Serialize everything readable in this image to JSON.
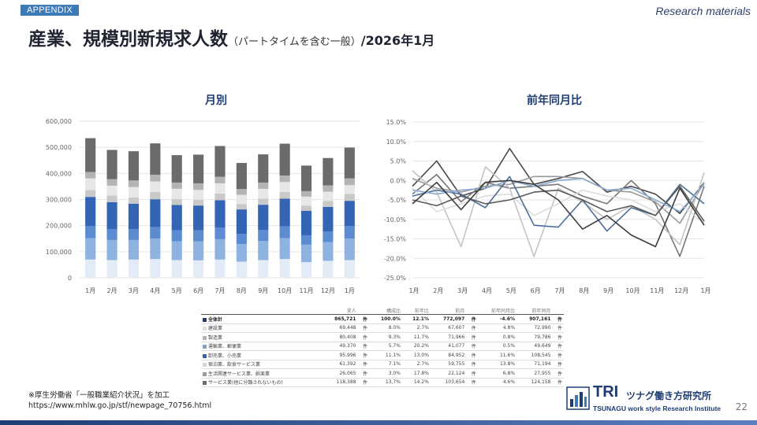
{
  "header": {
    "tag": "APPENDIX",
    "tagline": "Research materials",
    "title_main": "産業、規模別新規求人数",
    "title_sub": "（パートタイムを含む一般）",
    "title_tail": "/2026年1月"
  },
  "charts_head": {
    "left": "月別",
    "right": "前年同月比"
  },
  "chart_data": [
    {
      "type": "bar",
      "stacked": true,
      "title": "月別",
      "categories": [
        "1月",
        "2月",
        "3月",
        "4月",
        "5月",
        "6月",
        "7月",
        "8月",
        "9月",
        "10月",
        "11月",
        "12月",
        "1月"
      ],
      "ylim": [
        0,
        600000
      ],
      "yticks": [
        0,
        100000,
        200000,
        300000,
        400000,
        500000,
        600000
      ],
      "ytick_labels": [
        "0",
        "100,000",
        "200,000",
        "300,000",
        "400,000",
        "500,000",
        "600,000"
      ],
      "segment_colors": [
        "#e3ebf6",
        "#8fb3e0",
        "#5b8bd0",
        "#3464b4",
        "#c9c9c9",
        "#e7e7e7",
        "#b4b4b4",
        "#6b6b6b"
      ],
      "series": [
        {
          "values": [
            70000,
            68000,
            70000,
            72000,
            68000,
            67000,
            70000,
            62000,
            68000,
            72000,
            60000,
            65000,
            68000
          ]
        },
        {
          "values": [
            82000,
            77000,
            75000,
            78000,
            72000,
            73000,
            78000,
            67000,
            73000,
            80000,
            67000,
            72000,
            82000
          ]
        },
        {
          "values": [
            47000,
            42000,
            42000,
            44000,
            42000,
            42000,
            45000,
            39000,
            42000,
            45000,
            36000,
            40000,
            49000
          ]
        },
        {
          "values": [
            111000,
            103000,
            97000,
            107000,
            97000,
            95000,
            104000,
            94000,
            97000,
            106000,
            94000,
            95000,
            96000
          ]
        },
        {
          "values": [
            26000,
            25000,
            24000,
            28000,
            23000,
            22000,
            26000,
            21000,
            23000,
            26000,
            20000,
            22000,
            26000
          ]
        },
        {
          "values": [
            45000,
            38000,
            40000,
            40000,
            39000,
            38000,
            39000,
            35000,
            38000,
            38000,
            34000,
            36000,
            34000
          ]
        },
        {
          "values": [
            24000,
            25000,
            25000,
            26000,
            24000,
            25000,
            25000,
            22000,
            24000,
            25000,
            21000,
            24000,
            26000
          ]
        },
        {
          "values": [
            130000,
            112000,
            112000,
            120000,
            105000,
            110000,
            118000,
            100000,
            108000,
            122000,
            98000,
            105000,
            118000
          ]
        }
      ]
    },
    {
      "type": "line",
      "title": "前年同月比",
      "categories": [
        "1月",
        "2月",
        "3月",
        "4月",
        "5月",
        "6月",
        "7月",
        "8月",
        "9月",
        "10月",
        "11月",
        "12月",
        "1月"
      ],
      "ylim": [
        -25,
        15
      ],
      "yticks": [
        -25,
        -20,
        -15,
        -10,
        -5,
        0,
        5,
        10,
        15
      ],
      "ytick_labels": [
        "-25.0%",
        "-20.0%",
        "-15.0%",
        "-10.0%",
        "-5.0%",
        "0.0%",
        "5.0%",
        "10.0%",
        "15.0%"
      ],
      "series": [
        {
          "color": "#4a4a4a",
          "values": [
            -1.5,
            5.0,
            -4.0,
            -2.0,
            8.2,
            -1.0,
            0.5,
            2.3,
            -3.0,
            -1.5,
            -3.5,
            -8.5,
            -0.5
          ]
        },
        {
          "color": "#777777",
          "values": [
            -3.5,
            1.5,
            -5.5,
            -0.5,
            -2.0,
            -1.5,
            -1.0,
            -4.0,
            -6.0,
            0.0,
            -6.0,
            -19.5,
            -1.5
          ]
        },
        {
          "color": "#9a9a9a",
          "values": [
            0.5,
            -2.0,
            -3.0,
            -1.5,
            -1.0,
            1.0,
            1.0,
            0.5,
            -2.5,
            -3.0,
            -5.5,
            -11.0,
            -0.5
          ]
        },
        {
          "color": "#c4c4c4",
          "values": [
            2.5,
            -3.0,
            -17.0,
            3.5,
            -2.0,
            -19.5,
            -2.0,
            -5.5,
            -10.0,
            -6.5,
            -10.0,
            -16.5,
            2.0
          ]
        },
        {
          "color": "#dcdcdc",
          "values": [
            -2.0,
            -8.0,
            -6.0,
            -4.0,
            -3.5,
            -9.0,
            -6.0,
            -2.5,
            -4.0,
            -5.0,
            -8.0,
            -6.0,
            -11.0
          ]
        },
        {
          "color": "#4d6e99",
          "values": [
            -4.0,
            -2.5,
            -3.5,
            -7.0,
            1.0,
            -11.5,
            -12.0,
            -5.0,
            -13.0,
            -7.0,
            -9.0,
            -1.0,
            -6.0
          ]
        },
        {
          "color": "#5a5a5a",
          "values": [
            -5.0,
            -6.5,
            -4.0,
            -6.0,
            -5.0,
            -3.0,
            -2.5,
            -5.0,
            -8.0,
            -6.5,
            -9.0,
            -1.5,
            -10.5
          ]
        },
        {
          "color": "#8aa9cf",
          "values": [
            -2.5,
            -3.5,
            -2.5,
            -2.0,
            0.0,
            -1.5,
            0.0,
            0.5,
            -2.5,
            -2.0,
            -5.0,
            -8.0,
            -1.0
          ]
        },
        {
          "color": "#3e3e3e",
          "values": [
            -6.0,
            -0.5,
            -7.5,
            -0.5,
            0.0,
            -1.0,
            -5.0,
            -12.5,
            -9.0,
            -14.0,
            -17.0,
            -2.0,
            -11.5
          ]
        }
      ]
    }
  ],
  "table": {
    "headers": [
      "",
      "求人",
      "",
      "構成比",
      "前年比",
      "前月",
      "",
      "前年同月比",
      "前年同月",
      ""
    ],
    "rows": [
      {
        "name": "全体計",
        "total": true,
        "color": "#1f3d73",
        "v1": "865,721",
        "u1": "件",
        "v2": "100.0%",
        "v3": "12.1%",
        "v4": "772,097",
        "u4": "件",
        "v5": "-4.6%",
        "v6": "907,161",
        "u6": "件"
      },
      {
        "name": "建設業",
        "color": "#e0e0e0",
        "v1": "69,448",
        "u1": "件",
        "v2": "8.0%",
        "v3": "2.7%",
        "v4": "67,607",
        "u4": "件",
        "v5": "4.8%",
        "v6": "72,990",
        "u6": "件"
      },
      {
        "name": "製造業",
        "color": "#b5b5b5",
        "v1": "80,408",
        "u1": "件",
        "v2": "9.3%",
        "v3": "11.7%",
        "v4": "71,966",
        "u4": "件",
        "v5": "0.8%",
        "v6": "79,786",
        "u6": "件"
      },
      {
        "name": "運輸業、郵便業",
        "color": "#7ea0cf",
        "v1": "49,370",
        "u1": "件",
        "v2": "5.7%",
        "v3": "20.2%",
        "v4": "41,077",
        "u4": "件",
        "v5": "0.5%",
        "v6": "49,649",
        "u6": "件"
      },
      {
        "name": "卸売業、小売業",
        "color": "#3464b4",
        "v1": "95,996",
        "u1": "件",
        "v2": "11.1%",
        "v3": "13.0%",
        "v4": "84,952",
        "u4": "件",
        "v5": "11.6%",
        "v6": "108,545",
        "u6": "件"
      },
      {
        "name": "宿泊業、飲食サービス業",
        "color": "#d6d6d6",
        "v1": "61,392",
        "u1": "件",
        "v2": "7.1%",
        "v3": "2.7%",
        "v4": "59,755",
        "u4": "件",
        "v5": "13.8%",
        "v6": "71,194",
        "u6": "件"
      },
      {
        "name": "生活関連サービス業、娯楽業",
        "color": "#9a9a9a",
        "v1": "26,065",
        "u1": "件",
        "v2": "3.0%",
        "v3": "17.8%",
        "v4": "22,124",
        "u4": "件",
        "v5": "6.8%",
        "v6": "27,955",
        "u6": "件"
      },
      {
        "name": "サービス業(他に分類されないもの)",
        "color": "#6b6b6b",
        "v1": "118,388",
        "u1": "件",
        "v2": "13.7%",
        "v3": "14.2%",
        "v4": "103,654",
        "u4": "件",
        "v5": "4.6%",
        "v6": "124,158",
        "u6": "件"
      }
    ]
  },
  "footer": {
    "source": "※厚生労働省「一般職業紹介状況」を加工",
    "url": "https://www.mhlw.go.jp/stf/newpage_70756.html"
  },
  "logo": {
    "brand": "TRI",
    "jp": "ツナグ働き方研究所",
    "en": "TSUNAGU work style Research Institute"
  },
  "page_number": "22"
}
